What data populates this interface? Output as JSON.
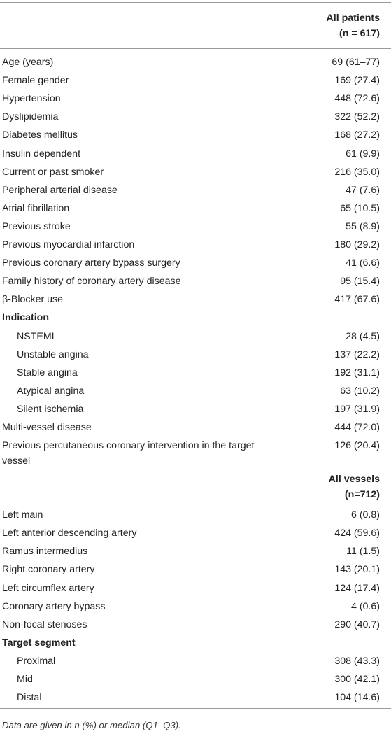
{
  "header1": {
    "line1": "All patients",
    "line2": "(n = 617)"
  },
  "patient_rows": [
    {
      "label": "Age (years)",
      "value": "69 (61–77)"
    },
    {
      "label": "Female gender",
      "value": "169 (27.4)"
    },
    {
      "label": "Hypertension",
      "value": "448 (72.6)"
    },
    {
      "label": "Dyslipidemia",
      "value": "322 (52.2)"
    },
    {
      "label": "Diabetes mellitus",
      "value": "168 (27.2)"
    },
    {
      "label": "Insulin dependent",
      "value": "61 (9.9)"
    },
    {
      "label": "Current or past smoker",
      "value": "216 (35.0)"
    },
    {
      "label": "Peripheral arterial disease",
      "value": "47 (7.6)"
    },
    {
      "label": "Atrial fibrillation",
      "value": "65 (10.5)"
    },
    {
      "label": "Previous stroke",
      "value": "55 (8.9)"
    },
    {
      "label": "Previous myocardial infarction",
      "value": "180 (29.2)"
    },
    {
      "label": "Previous coronary artery bypass surgery",
      "value": "41 (6.6)"
    },
    {
      "label": "Family history of coronary artery disease",
      "value": "95 (15.4)"
    },
    {
      "label": "β-Blocker use",
      "value": "417 (67.6)"
    }
  ],
  "indication": {
    "label": "Indication",
    "rows": [
      {
        "label": "NSTEMI",
        "value": "28 (4.5)"
      },
      {
        "label": "Unstable angina",
        "value": "137 (22.2)"
      },
      {
        "label": "Stable angina",
        "value": "192 (31.1)"
      },
      {
        "label": "Atypical angina",
        "value": "63 (10.2)"
      },
      {
        "label": "Silent ischemia",
        "value": "197 (31.9)"
      }
    ]
  },
  "multi_vessel": {
    "label": "Multi-vessel disease",
    "value": "444 (72.0)"
  },
  "prev_pci": {
    "label": "Previous percutaneous coronary intervention in the target vessel",
    "value": "126 (20.4)"
  },
  "header2": {
    "line1": "All vessels",
    "line2": "(n=712)"
  },
  "vessel_rows": [
    {
      "label": "Left main",
      "value": "6 (0.8)"
    },
    {
      "label": "Left anterior descending artery",
      "value": "424 (59.6)"
    },
    {
      "label": "Ramus intermedius",
      "value": "11 (1.5)"
    },
    {
      "label": "Right coronary artery",
      "value": "143 (20.1)"
    },
    {
      "label": "Left circumflex artery",
      "value": "124 (17.4)"
    },
    {
      "label": "Coronary artery bypass",
      "value": "4 (0.6)"
    },
    {
      "label": "Non-focal stenoses",
      "value": "290 (40.7)"
    }
  ],
  "target_segment": {
    "label": "Target segment",
    "rows": [
      {
        "label": "Proximal",
        "value": "308 (43.3)"
      },
      {
        "label": "Mid",
        "value": "300 (42.1)"
      },
      {
        "label": "Distal",
        "value": "104 (14.6)"
      }
    ]
  },
  "footnote": "Data are given in n (%) or median (Q1–Q3)."
}
